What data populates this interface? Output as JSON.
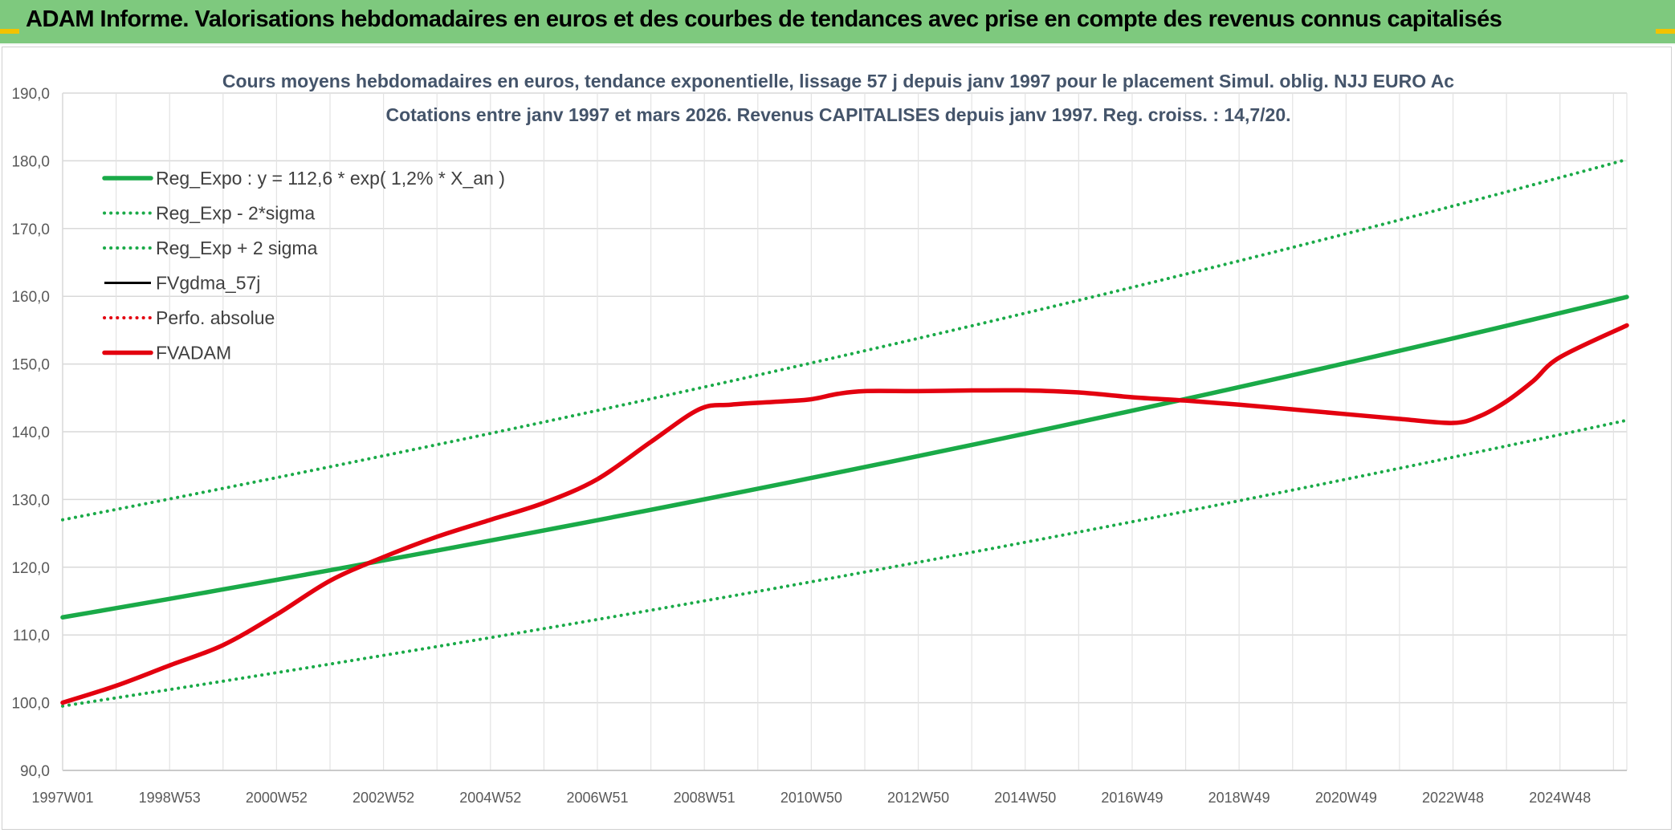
{
  "header": {
    "title": "ADAM Informe. Valorisations hebdomadaires en euros et des courbes de tendances avec prise en compte des revenus connus capitalisés"
  },
  "colors": {
    "header_bg": "#7ec97e",
    "green": "#1aaa48",
    "red": "#e3000f",
    "black": "#000000"
  },
  "chart_data": {
    "type": "line",
    "title": "Cours moyens hebdomadaires en euros, tendance exponentielle, lissage 57 j depuis janv 1997 pour le placement Simul. oblig. NJJ EURO Ac",
    "subtitle": "Cotations entre janv 1997 et mars 2026. Revenus CAPITALISES depuis janv 1997. Reg. croiss. : 14,7/20.",
    "xlabel": "",
    "ylabel": "",
    "ylim": [
      90,
      190
    ],
    "yticks": [
      "90,0",
      "100,0",
      "110,0",
      "120,0",
      "130,0",
      "140,0",
      "150,0",
      "160,0",
      "170,0",
      "180,0",
      "190,0"
    ],
    "xlim": [
      1997.0,
      2026.25
    ],
    "xtick_labels": [
      "1997W01",
      "1998W53",
      "2000W52",
      "2002W52",
      "2004W52",
      "2006W51",
      "2008W51",
      "2010W50",
      "2012W50",
      "2014W50",
      "2016W49",
      "2018W49",
      "2020W49",
      "2022W48",
      "2024W48"
    ],
    "xtick_positions": [
      1997.0,
      1999.0,
      2001.0,
      2003.0,
      2005.0,
      2007.0,
      2009.0,
      2011.0,
      2013.0,
      2015.0,
      2017.0,
      2019.0,
      2021.0,
      2023.0,
      2025.0
    ],
    "grid": true,
    "legend_position": "top-left",
    "legend": [
      {
        "key": "reg_expo",
        "label": "Reg_Expo : y = 112,6 * exp( 1,2% *  X_an )",
        "color": "#1aaa48",
        "style": "solid-thick"
      },
      {
        "key": "reg_minus",
        "label": "Reg_Exp - 2*sigma",
        "color": "#1aaa48",
        "style": "dotted"
      },
      {
        "key": "reg_plus",
        "label": "Reg_Exp + 2 sigma",
        "color": "#1aaa48",
        "style": "dotted"
      },
      {
        "key": "fvgdma",
        "label": "FVgdma_57j",
        "color": "#000000",
        "style": "solid"
      },
      {
        "key": "perfo",
        "label": "Perfo. absolue",
        "color": "#e3000f",
        "style": "dotted"
      },
      {
        "key": "fvadam",
        "label": "FVADAM",
        "color": "#e3000f",
        "style": "solid-thick"
      }
    ],
    "series": [
      {
        "name": "Reg_Expo",
        "key": "reg_expo",
        "x": [
          1997.0,
          2026.25
        ],
        "y": [
          112.6,
          159.9
        ]
      },
      {
        "name": "Reg_Exp - 2*sigma",
        "key": "reg_minus",
        "x": [
          1997.0,
          2026.25
        ],
        "y": [
          99.5,
          141.7
        ]
      },
      {
        "name": "Reg_Exp + 2 sigma",
        "key": "reg_plus",
        "x": [
          1997.0,
          2026.25
        ],
        "y": [
          127.0,
          180.2
        ]
      },
      {
        "name": "FVADAM",
        "key": "fvadam",
        "x": [
          1997.0,
          1998.0,
          1999.0,
          2000.0,
          2001.0,
          2002.0,
          2003.0,
          2004.0,
          2005.0,
          2006.0,
          2007.0,
          2008.0,
          2008.9,
          2009.5,
          2010.5,
          2011.0,
          2011.5,
          2012.0,
          2013.0,
          2014.0,
          2015.0,
          2016.0,
          2017.0,
          2018.0,
          2019.0,
          2020.0,
          2021.0,
          2022.0,
          2023.0,
          2023.5,
          2024.0,
          2024.5,
          2025.0,
          2026.25
        ],
        "y": [
          100.0,
          102.5,
          105.5,
          108.5,
          113.0,
          118.0,
          121.5,
          124.5,
          127.0,
          129.5,
          133.0,
          138.5,
          143.3,
          144.0,
          144.5,
          144.8,
          145.6,
          146.0,
          146.0,
          146.1,
          146.1,
          145.8,
          145.1,
          144.6,
          144.0,
          143.3,
          142.6,
          141.9,
          141.3,
          142.3,
          144.5,
          147.5,
          151.0,
          155.7
        ]
      }
    ]
  }
}
